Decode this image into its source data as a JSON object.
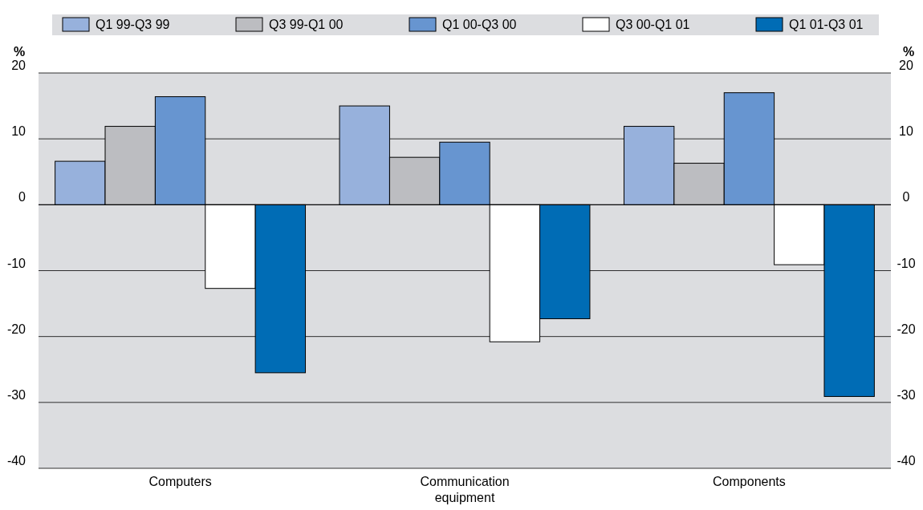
{
  "chart_data": {
    "type": "bar",
    "categories": [
      "Computers",
      "Communication equipment",
      "Components"
    ],
    "series": [
      {
        "name": "Q1 99-Q3 99",
        "color": "#97b1dc",
        "values": [
          6.6,
          15.0,
          11.9
        ]
      },
      {
        "name": "Q3 99-Q1 00",
        "color": "#bcbdc1",
        "values": [
          11.9,
          7.2,
          6.3
        ]
      },
      {
        "name": "Q1 00-Q3 00",
        "color": "#6795d0",
        "values": [
          16.4,
          9.5,
          17.0
        ]
      },
      {
        "name": "Q3 00-Q1 01",
        "color": "#ffffff",
        "values": [
          -12.7,
          -20.8,
          -9.1
        ]
      },
      {
        "name": "Q1 01-Q3 01",
        "color": "#006cb5",
        "values": [
          -25.5,
          -17.3,
          -29.1
        ]
      }
    ],
    "ylabel": "%",
    "y2label": "%",
    "ylim": [
      -40,
      20
    ],
    "yticks": [
      -40,
      -30,
      -20,
      -10,
      0,
      10,
      20
    ],
    "y2lim": [
      -40,
      20
    ],
    "y2ticks": [
      -40,
      -30,
      -20,
      -10,
      0,
      10,
      20
    ],
    "grid": "y",
    "legend": "top"
  }
}
